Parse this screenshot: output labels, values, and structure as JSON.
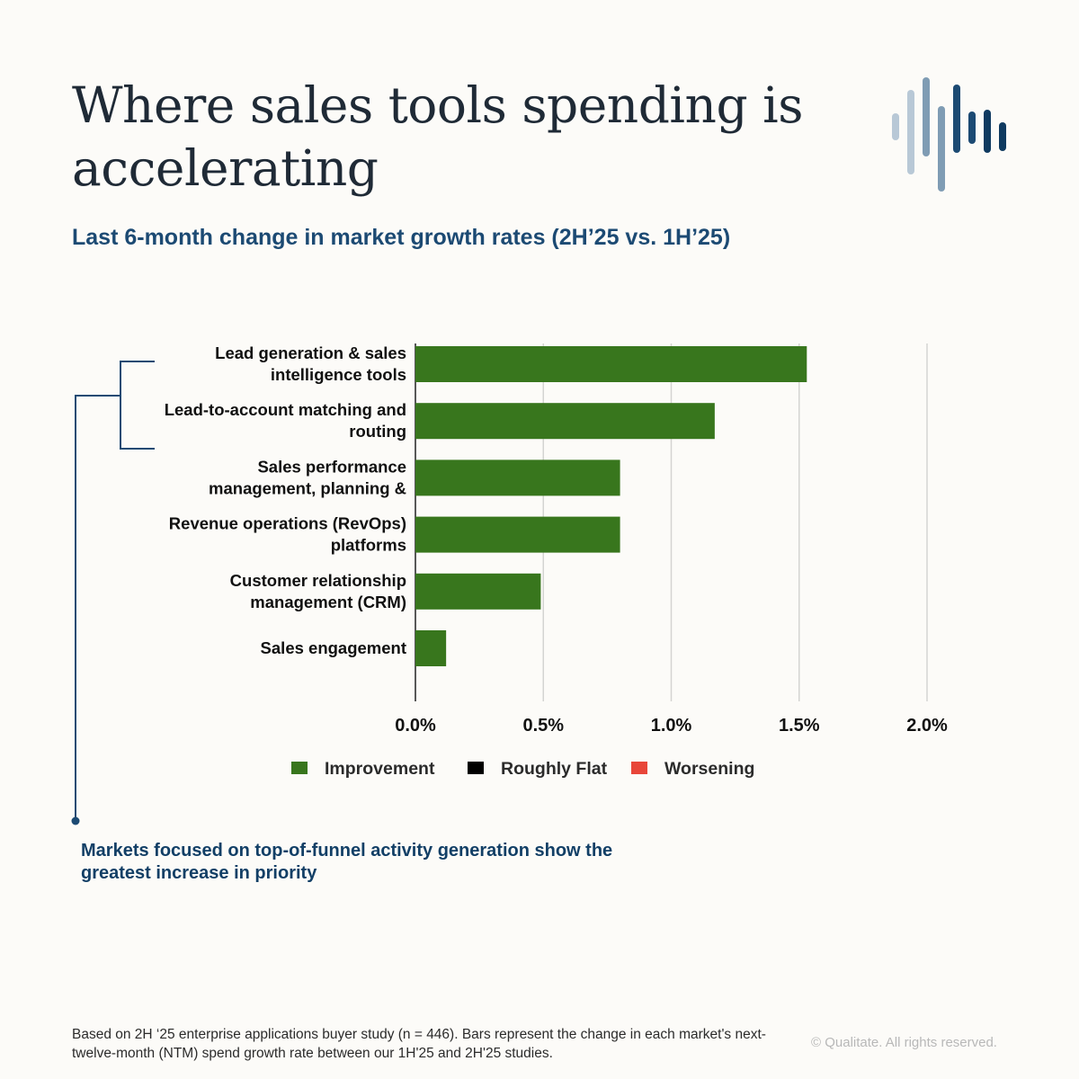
{
  "header": {
    "title": "Where sales tools spending is accelerating",
    "subtitle": "Last 6-month change in market growth rates (2H’25 vs. 1H’25)",
    "logo_icon": "bar-waveform-logo-icon"
  },
  "chart_data": {
    "type": "bar",
    "orientation": "horizontal",
    "categories": [
      [
        "Lead generation & sales",
        "intelligence tools"
      ],
      [
        "Lead-to-account matching and",
        "routing"
      ],
      [
        "Sales performance",
        "management, planning &"
      ],
      [
        "Revenue operations (RevOps)",
        "platforms"
      ],
      [
        "Customer relationship",
        "management (CRM)"
      ],
      [
        "Sales engagement"
      ]
    ],
    "values": [
      1.53,
      1.17,
      0.8,
      0.8,
      0.49,
      0.12
    ],
    "xlim": [
      0,
      2.0
    ],
    "x_ticks": [
      "0.0%",
      "0.5%",
      "1.0%",
      "1.5%",
      "2.0%"
    ],
    "x_tick_values": [
      0,
      0.5,
      1.0,
      1.5,
      2.0
    ],
    "grid": "vertical",
    "legend_position": "bottom",
    "legend": [
      {
        "label": "Improvement",
        "color": "#38761d"
      },
      {
        "label": "Roughly Flat",
        "color": "#000000"
      },
      {
        "label": "Worsening",
        "color": "#e8463a"
      }
    ],
    "bar_color": "#38761d"
  },
  "annotation": {
    "text": "Markets focused on top-of-funnel activity generation show the greatest increase in priority"
  },
  "footer": {
    "footnote": "Based on 2H ‘25 enterprise applications buyer study (n = 446). Bars represent the change in each market's next-twelve-month (NTM) spend growth rate between our 1H'25 and 2H'25 studies.",
    "copyright": "© Qualitate. All rights reserved."
  }
}
